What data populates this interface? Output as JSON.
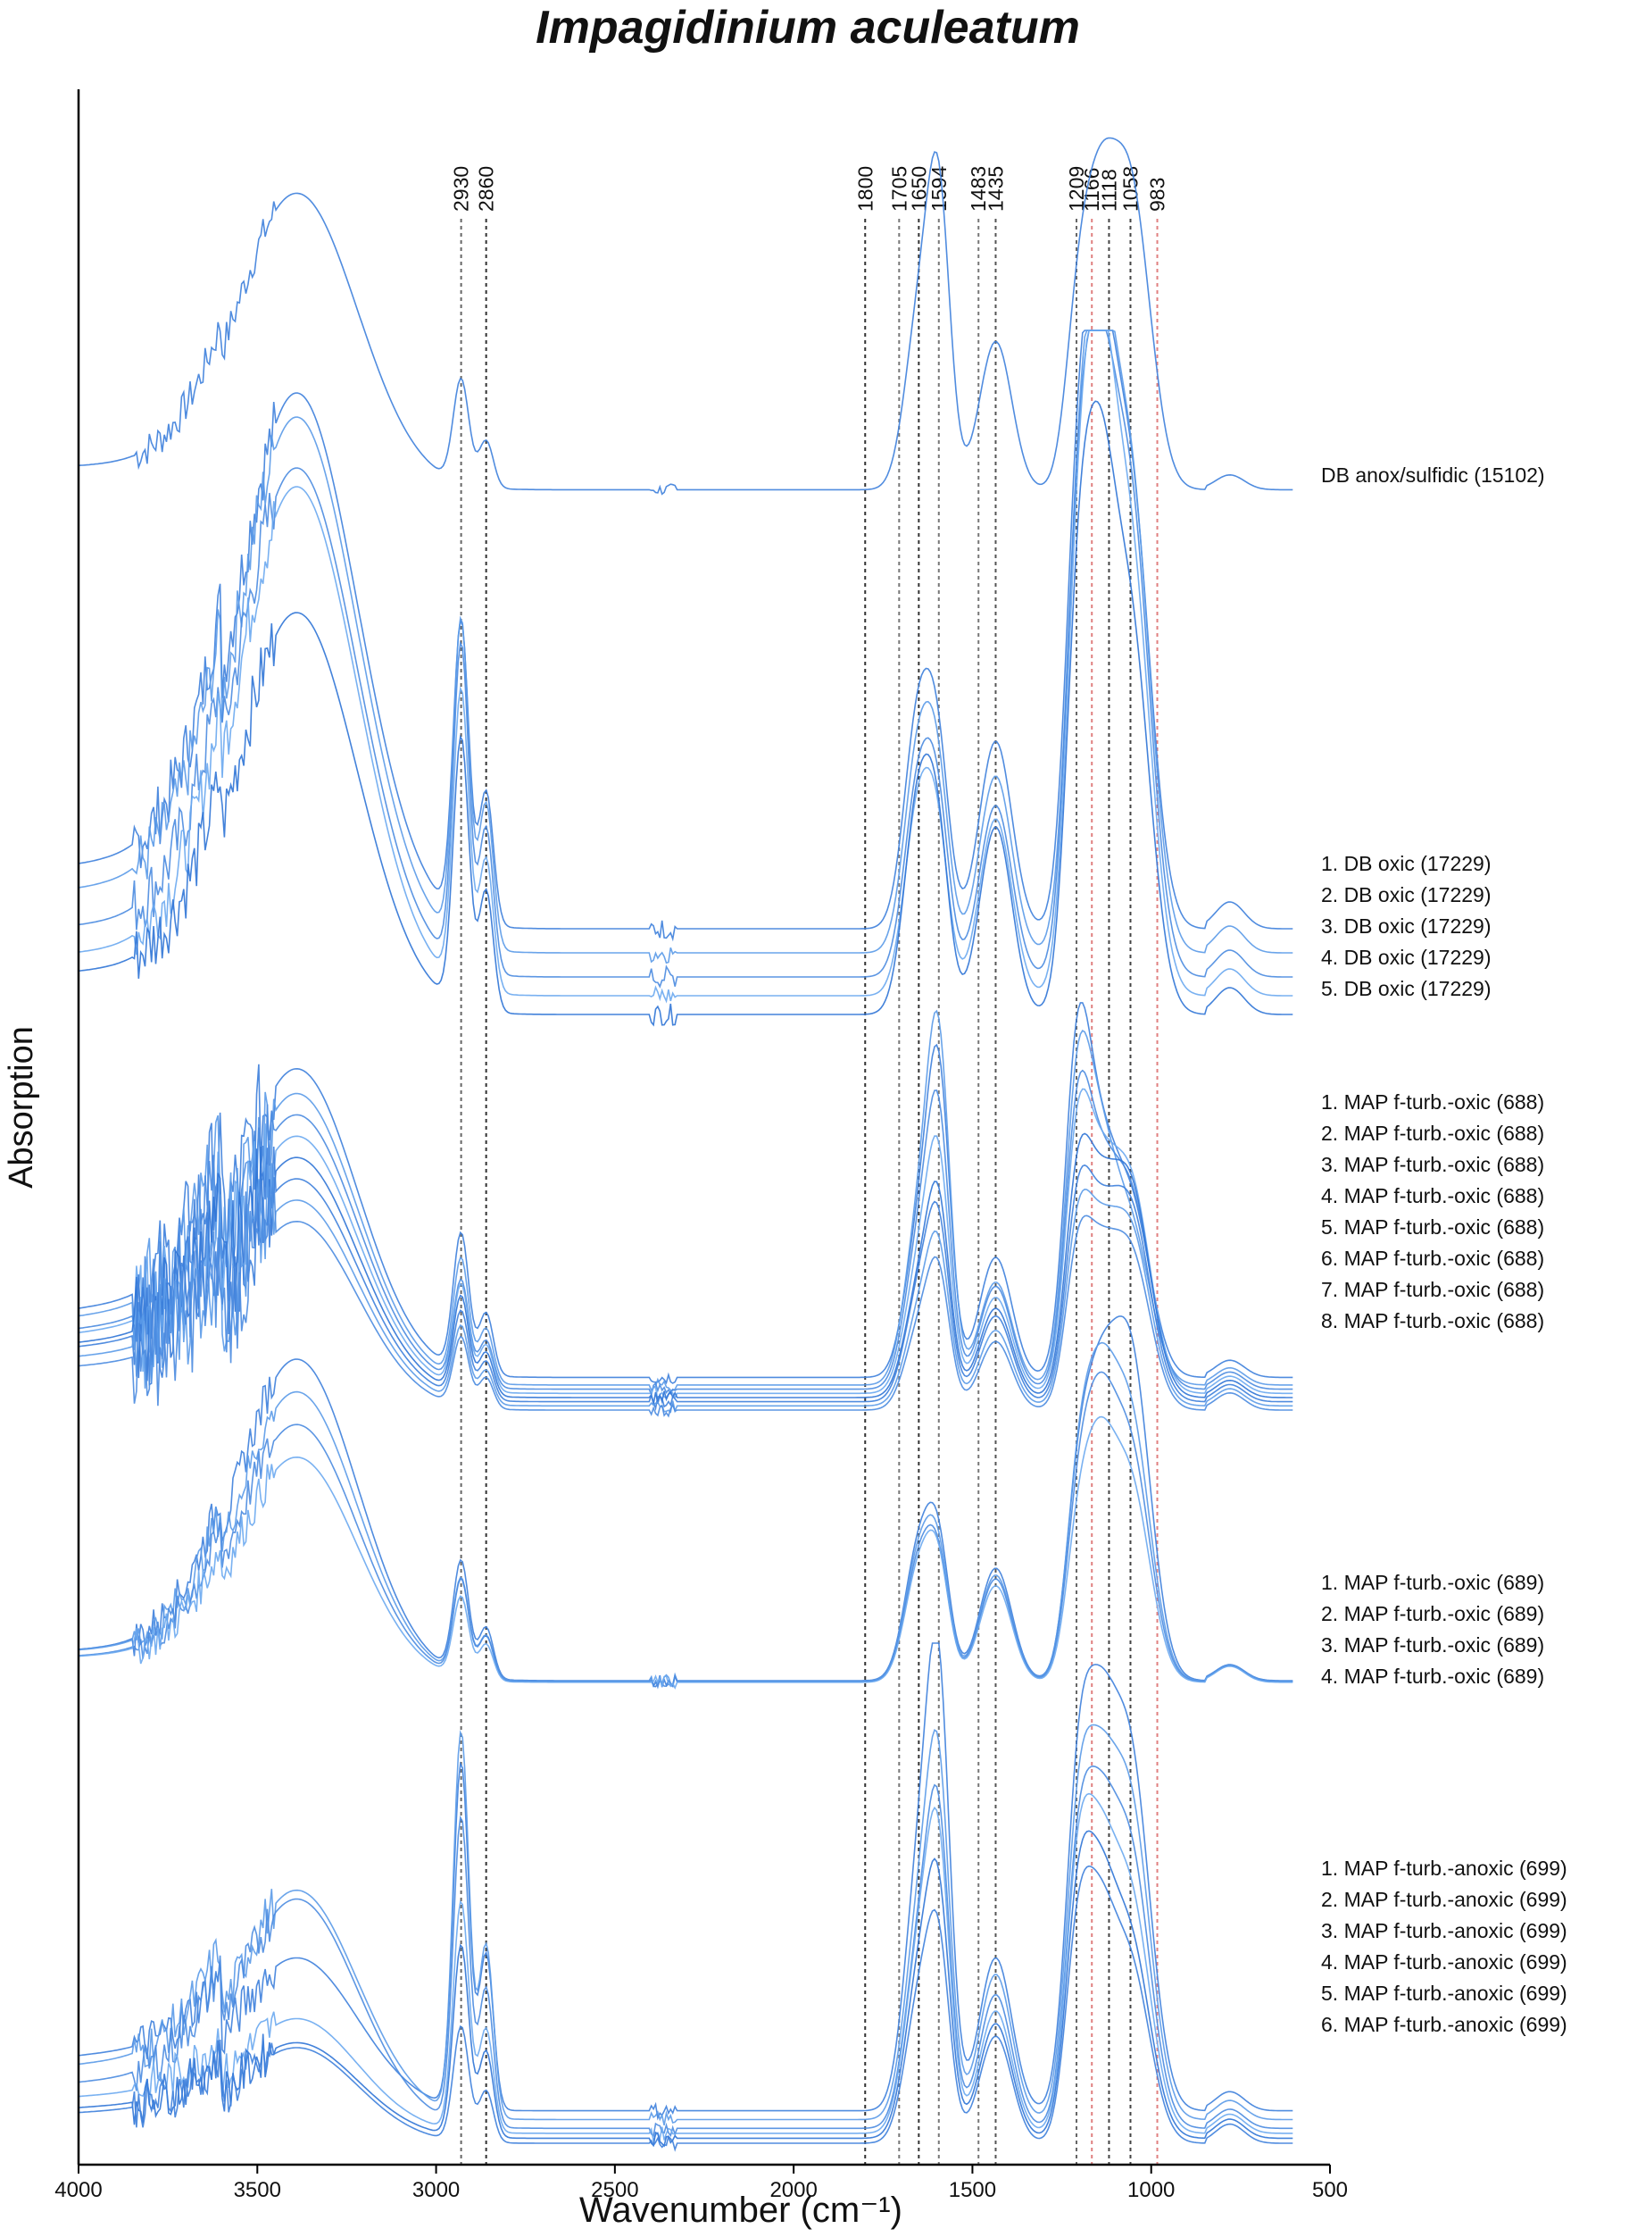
{
  "chart_data": {
    "type": "line",
    "title": "Impagidinium aculeatum",
    "xlabel": "Wavenumber (cm⁻¹)",
    "ylabel": "Absorption",
    "xlim": [
      4000,
      500
    ],
    "x_reversed": true,
    "xticks": [
      4000,
      3500,
      3000,
      2500,
      2000,
      1500,
      1000,
      500
    ],
    "reference_lines": [
      {
        "x": 2930,
        "label": "2930",
        "color": "#666666"
      },
      {
        "x": 2860,
        "label": "2860",
        "color": "#333333"
      },
      {
        "x": 1800,
        "label": "1800",
        "color": "#333333"
      },
      {
        "x": 1705,
        "label": "1705",
        "color": "#777777"
      },
      {
        "x": 1650,
        "label": "1650",
        "color": "#333333"
      },
      {
        "x": 1594,
        "label": "1594",
        "color": "#777777"
      },
      {
        "x": 1483,
        "label": "1483",
        "color": "#777777"
      },
      {
        "x": 1435,
        "label": "1435",
        "color": "#555555"
      },
      {
        "x": 1209,
        "label": "1209",
        "color": "#666666"
      },
      {
        "x": 1166,
        "label": "1166",
        "color": "#e08080"
      },
      {
        "x": 1118,
        "label": "1118",
        "color": "#444444"
      },
      {
        "x": 1058,
        "label": "1058",
        "color": "#444444"
      },
      {
        "x": 983,
        "label": "983",
        "color": "#e08080"
      }
    ],
    "groups": [
      {
        "labels": [
          "DB anox/sulfidic (15102)"
        ],
        "y_range": [
          1.0,
          1.08,
          0.0,
          0.66
        ]
      },
      {
        "labels": [
          "1. DB oxic (17229)",
          "2. DB oxic (17229)",
          "3. DB oxic (17229)",
          "4. DB oxic (17229)",
          "5. DB oxic (17229)"
        ],
        "y_range": [
          0.92,
          1.02,
          0.03,
          0.55
        ]
      },
      {
        "labels": [
          "1. MAP f-turb.-oxic (688)",
          "2. MAP f-turb.-oxic (688)",
          "3. MAP f-turb.-oxic (688)",
          "4. MAP f-turb.-oxic (688)",
          "5. MAP f-turb.-oxic (688)",
          "6. MAP f-turb.-oxic (688)",
          "7. MAP f-turb.-oxic (688)",
          "8. MAP f-turb.-oxic (688)"
        ],
        "y_range": [
          0.8,
          1.0,
          0.05,
          0.6
        ]
      },
      {
        "labels": [
          "1. MAP f-turb.-oxic (689)",
          "2. MAP f-turb.-oxic (689)",
          "3. MAP f-turb.-oxic (689)",
          "4. MAP f-turb.-oxic (689)"
        ],
        "y_range": [
          0.88,
          1.0,
          0.02,
          0.62
        ]
      },
      {
        "labels": [
          "1. MAP f-turb.-anoxic (699)",
          "2. MAP f-turb.-anoxic (699)",
          "3. MAP f-turb.-anoxic (699)",
          "4. MAP f-turb.-anoxic (699)",
          "5. MAP f-turb.-anoxic (699)",
          "6. MAP f-turb.-anoxic (699)"
        ],
        "y_range": [
          0.5,
          0.9,
          0.05,
          0.45
        ]
      }
    ],
    "grid": false,
    "legend": "labels to the right of each spectrum group",
    "colors": {
      "series": [
        "#3d7fdc",
        "#5a9ae8",
        "#4a8be0",
        "#6aa8ef",
        "#2f74d6"
      ],
      "axis": "#000000"
    }
  }
}
